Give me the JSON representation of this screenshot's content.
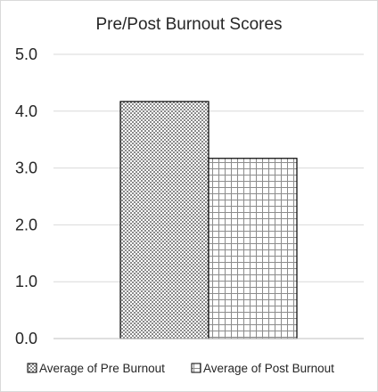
{
  "chart_data": {
    "type": "bar",
    "title": "Pre/Post Burnout Scores",
    "xlabel": "",
    "ylabel": "",
    "ylim": [
      0,
      5
    ],
    "yticks": [
      "0.0",
      "1.0",
      "2.0",
      "3.0",
      "4.0",
      "5.0"
    ],
    "grid": true,
    "legend_position": "bottom",
    "series": [
      {
        "name": "Average of Pre Burnout",
        "values": [
          4.17
        ],
        "pattern": "checker",
        "color": "#000000"
      },
      {
        "name": "Average of Post Burnout",
        "values": [
          3.17
        ],
        "pattern": "grid",
        "color": "#000000"
      }
    ],
    "colors": {
      "gridline": "#d9d9d9",
      "axis": "#bfbfbf",
      "text": "#262626"
    }
  }
}
